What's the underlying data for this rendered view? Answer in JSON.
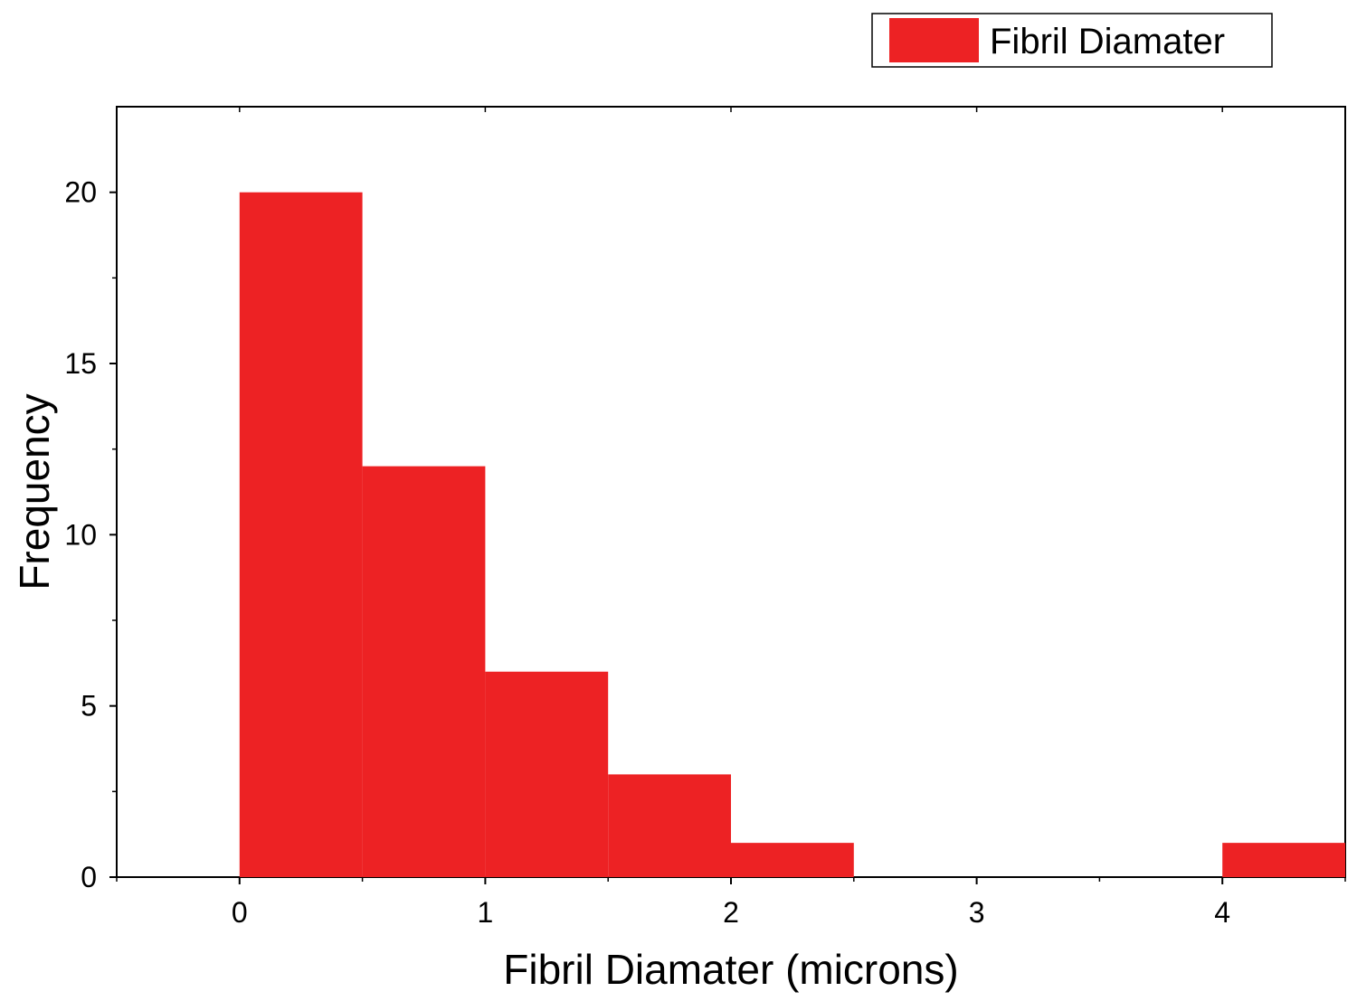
{
  "chart_data": {
    "type": "bar",
    "subtype": "histogram",
    "xlabel": "Fibril Diamater (microns)",
    "ylabel": "Frequency",
    "xlim": [
      -0.5,
      4.5
    ],
    "ylim": [
      0,
      22.5
    ],
    "x_ticks": [
      0,
      1,
      2,
      3,
      4
    ],
    "y_ticks": [
      0,
      5,
      10,
      15,
      20
    ],
    "grid": false,
    "legend_position": "top-right",
    "series": [
      {
        "name": "Fibril Diamater",
        "color": "#ed2224",
        "bins": [
          {
            "start": 0.0,
            "end": 0.5,
            "value": 20
          },
          {
            "start": 0.5,
            "end": 1.0,
            "value": 12
          },
          {
            "start": 1.0,
            "end": 1.5,
            "value": 6
          },
          {
            "start": 1.5,
            "end": 2.0,
            "value": 3
          },
          {
            "start": 2.0,
            "end": 2.5,
            "value": 1
          },
          {
            "start": 2.5,
            "end": 3.0,
            "value": 0
          },
          {
            "start": 3.0,
            "end": 3.5,
            "value": 0
          },
          {
            "start": 3.5,
            "end": 4.0,
            "value": 0
          },
          {
            "start": 4.0,
            "end": 4.5,
            "value": 1
          }
        ]
      }
    ]
  }
}
